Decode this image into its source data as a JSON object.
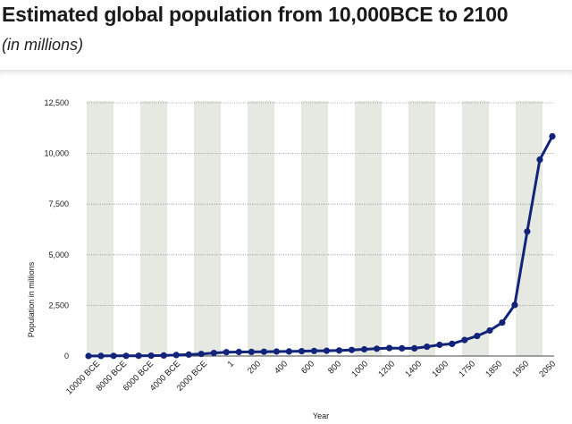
{
  "header": {
    "title": "Estimated global population from 10,000BCE to 2100",
    "subtitle": "(in millions)"
  },
  "chart_data": {
    "type": "line",
    "title": "Estimated global population from 10,000BCE to 2100",
    "subtitle": "(in millions)",
    "xlabel": "Year",
    "ylabel": "Population in millions",
    "ylim": [
      0,
      12500
    ],
    "yticks": [
      0,
      2500,
      5000,
      7500,
      10000,
      12500
    ],
    "ytick_labels": [
      "0",
      "2,500",
      "5,000",
      "7,500",
      "10,000",
      "12,500"
    ],
    "x_tick_labels": [
      "10000 BCE",
      "8000 BCE",
      "6000 BCE",
      "4000 BCE",
      "2000 BCE",
      "1",
      "200",
      "400",
      "600",
      "800",
      "1000",
      "1200",
      "1400",
      "1600",
      "1750",
      "1850",
      "1950",
      "2050"
    ],
    "series": [
      {
        "name": "Estimated global population",
        "color": "#12237a",
        "values": [
          2,
          5,
          8,
          11,
          14,
          18,
          27,
          50,
          72,
          100,
          150,
          190,
          200,
          205,
          210,
          220,
          226,
          237,
          250,
          262,
          275,
          300,
          330,
          360,
          395,
          380,
          380,
          460,
          550,
          600,
          790,
          990,
          1260,
          1650,
          2520,
          6150,
          9700,
          10850
        ]
      }
    ],
    "grid": true,
    "colors": {
      "line": "#12237a",
      "band": "#e6e9e1",
      "gridline": "#8a8a8a",
      "axis": "#4a4a4a"
    }
  }
}
